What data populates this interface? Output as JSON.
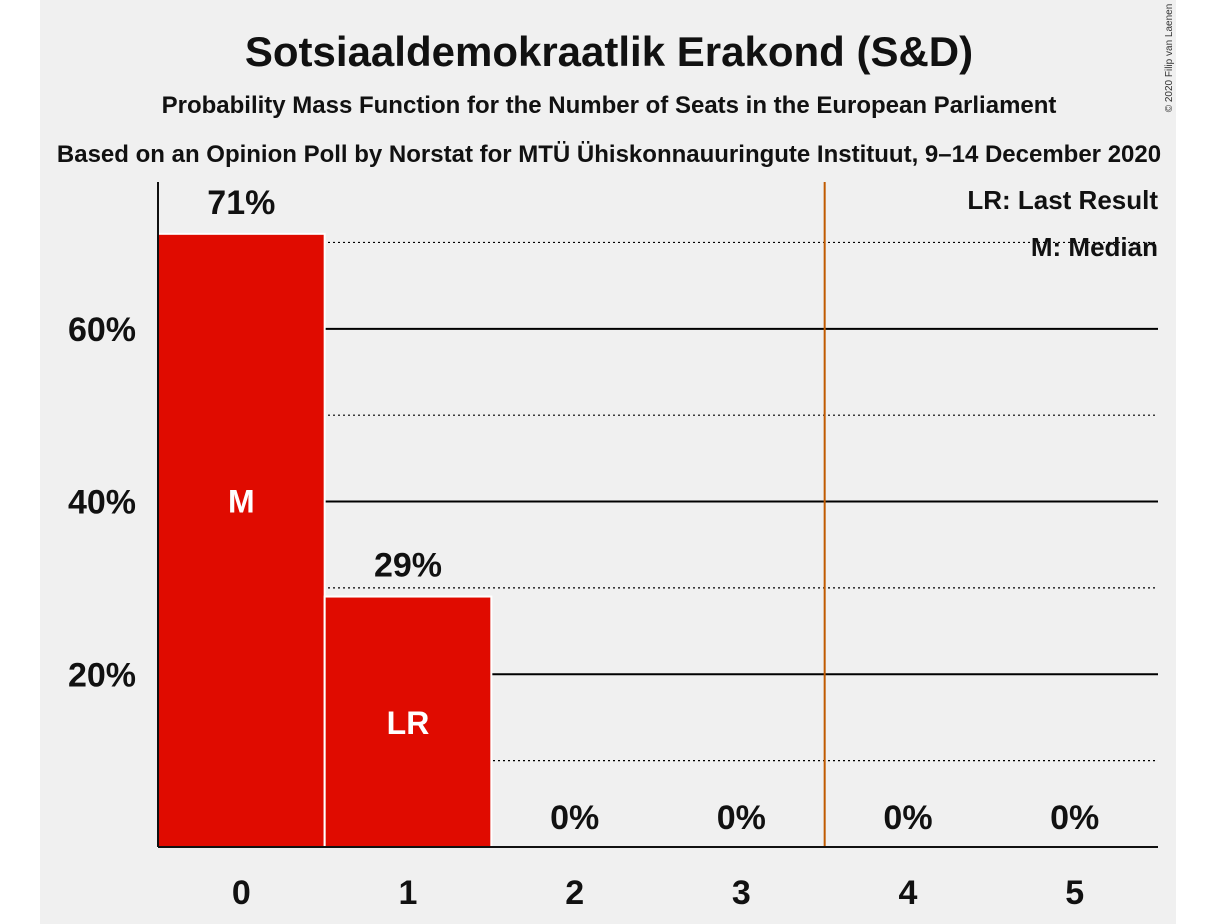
{
  "chart_data": {
    "type": "bar",
    "title": "Sotsiaaldemokraatlik Erakond (S&D)",
    "subtitle": "Probability Mass Function for the Number of Seats in the European Parliament",
    "source": "Based on an Opinion Poll by Norstat for MTÜ Ühiskonnauuringute Instituut, 9–14 December 2020",
    "copyright": "© 2020 Filip van Laenen",
    "categories": [
      "0",
      "1",
      "2",
      "3",
      "4",
      "5"
    ],
    "values": [
      71,
      29,
      0,
      0,
      0,
      0
    ],
    "value_labels": [
      "71%",
      "29%",
      "0%",
      "0%",
      "0%",
      "0%"
    ],
    "bar_markers": [
      "M",
      "LR",
      "",
      "",
      "",
      ""
    ],
    "y_ticks": [
      {
        "value": 20,
        "label": "20%"
      },
      {
        "value": 40,
        "label": "40%"
      },
      {
        "value": 60,
        "label": "60%"
      }
    ],
    "ylim": [
      0,
      77
    ],
    "last_result_line": 3.5,
    "legend": [
      "LR: Last Result",
      "M: Median"
    ],
    "legend_position": "top-right",
    "colors": {
      "bar": "#e00b00",
      "last_result_line": "#c05a00",
      "grid": "#000000"
    }
  }
}
